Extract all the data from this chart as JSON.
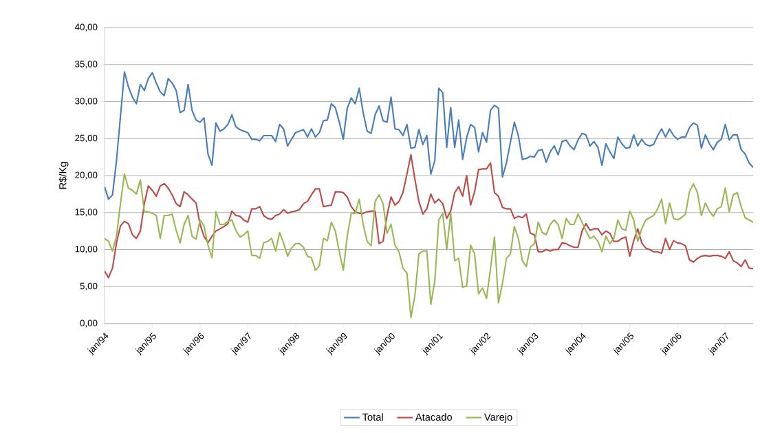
{
  "chart_data": {
    "type": "line",
    "ylabel": "R$/Kg",
    "categories": [
      "jan/94",
      null,
      null,
      null,
      null,
      null,
      null,
      null,
      null,
      null,
      null,
      null,
      "jan/95",
      null,
      null,
      null,
      null,
      null,
      null,
      null,
      null,
      null,
      null,
      null,
      "jan/96",
      null,
      null,
      null,
      null,
      null,
      null,
      null,
      null,
      null,
      null,
      null,
      "jan/97",
      null,
      null,
      null,
      null,
      null,
      null,
      null,
      null,
      null,
      null,
      null,
      "jan/98",
      null,
      null,
      null,
      null,
      null,
      null,
      null,
      null,
      null,
      null,
      null,
      "jan/99",
      null,
      null,
      null,
      null,
      null,
      null,
      null,
      null,
      null,
      null,
      null,
      "jan/00",
      null,
      null,
      null,
      null,
      null,
      null,
      null,
      null,
      null,
      null,
      null,
      "jan/01",
      null,
      null,
      null,
      null,
      null,
      null,
      null,
      null,
      null,
      null,
      null,
      "jan/02",
      null,
      null,
      null,
      null,
      null,
      null,
      null,
      null,
      null,
      null,
      null,
      "jan/03",
      null,
      null,
      null,
      null,
      null,
      null,
      null,
      null,
      null,
      null,
      null,
      "jan/04",
      null,
      null,
      null,
      null,
      null,
      null,
      null,
      null,
      null,
      null,
      null,
      "jan/05",
      null,
      null,
      null,
      null,
      null,
      null,
      null,
      null,
      null,
      null,
      null,
      "jan/06",
      null,
      null,
      null,
      null,
      null,
      null,
      null,
      null,
      null,
      null,
      null,
      "jan/07",
      null,
      null,
      null,
      null,
      null,
      null,
      null
    ],
    "series": [
      {
        "name": "Total",
        "color": "#4a7ebb",
        "values": [
          18.5,
          16.8,
          17.4,
          22,
          28,
          34,
          32,
          30.6,
          29.7,
          32.3,
          31.5,
          33.1,
          33.9,
          32.5,
          31.3,
          30.8,
          33.1,
          32.5,
          31.5,
          28.5,
          28.8,
          32.3,
          28.8,
          27.5,
          27.2,
          27.8,
          22.9,
          21.4,
          27.1,
          26.0,
          26.3,
          26.9,
          28.2,
          26.6,
          26.2,
          26.0,
          25.8,
          24.9,
          24.9,
          24.7,
          25.4,
          25.4,
          25.4,
          24.6,
          26.9,
          26.3,
          24.0,
          24.9,
          25.8,
          26.0,
          26.2,
          25.2,
          26.3,
          25.2,
          25.8,
          27.4,
          27.5,
          29.7,
          29.2,
          27.2,
          24.9,
          29.1,
          30.5,
          29.7,
          31.8,
          28.5,
          26.0,
          25.7,
          28.2,
          29.4,
          27.4,
          27.2,
          30.6,
          26.3,
          26.2,
          25.4,
          26.9,
          23.7,
          23.8,
          26.2,
          24.2,
          25.4,
          20.2,
          22.0,
          31.8,
          31.2,
          23.8,
          29.2,
          23.8,
          27.5,
          22.2,
          25.1,
          26.9,
          26.5,
          23.2,
          25.8,
          24.5,
          28.8,
          29.5,
          29.1,
          19.8,
          21.7,
          24.5,
          27.2,
          25.4,
          22.2,
          22.3,
          22.6,
          22.5,
          23.4,
          23.5,
          21.8,
          23.2,
          24.0,
          22.8,
          24.6,
          24.8,
          24.0,
          23.5,
          24.8,
          25.7,
          25.5,
          24.0,
          24.6,
          23.8,
          21.4,
          24.3,
          23.2,
          22.3,
          25.2,
          24.3,
          23.7,
          23.8,
          25.5,
          24.0,
          24.9,
          24.2,
          24.0,
          24.2,
          25.4,
          26.3,
          25.2,
          26.3,
          25.4,
          24.9,
          25.2,
          25.2,
          26.5,
          27.1,
          26.8,
          23.7,
          25.5,
          24.3,
          23.5,
          24.5,
          24.9,
          26.9,
          24.8,
          25.5,
          25.5,
          23.5,
          22.9,
          21.7,
          21.1
        ]
      },
      {
        "name": "Atacado",
        "color": "#be4b48",
        "values": [
          7.1,
          6.2,
          7.5,
          10.9,
          13.2,
          13.8,
          13.5,
          12.0,
          11.5,
          12.5,
          16.2,
          18.6,
          18.0,
          17.2,
          18.6,
          18.9,
          18.3,
          17.4,
          16.2,
          15.8,
          17.8,
          17.4,
          16.8,
          16.3,
          13.4,
          11.8,
          10.9,
          11.8,
          12.5,
          12.8,
          13.1,
          13.5,
          15.2,
          14.6,
          14.5,
          14.0,
          13.7,
          15.5,
          15.5,
          15.8,
          14.6,
          14.2,
          14.1,
          14.6,
          14.8,
          15.4,
          14.9,
          15.1,
          15.2,
          15.4,
          16.2,
          16.5,
          17.4,
          18.2,
          18.2,
          15.8,
          15.9,
          16.0,
          17.8,
          17.8,
          17.7,
          17.1,
          15.8,
          15.1,
          14.9,
          14.9,
          15.1,
          15.2,
          15.2,
          10.8,
          11.1,
          14.6,
          17.1,
          16.0,
          16.5,
          17.7,
          20.2,
          22.8,
          19.5,
          16.5,
          14.8,
          15.5,
          17.5,
          16.3,
          16.8,
          16.2,
          14.2,
          15.2,
          17.7,
          18.5,
          17.2,
          20.0,
          16.0,
          17.8,
          20.8,
          20.9,
          20.9,
          21.7,
          17.7,
          17.2,
          15.7,
          15.5,
          15.5,
          14.2,
          14.5,
          14.3,
          14.8,
          12.2,
          12.0,
          9.7,
          9.7,
          10.0,
          9.8,
          10.0,
          10.0,
          10.9,
          10.8,
          10.5,
          10.3,
          10.3,
          12.5,
          13.5,
          12.6,
          12.8,
          12.8,
          12.0,
          12.5,
          12.2,
          11.1,
          11.1,
          11.5,
          11.7,
          9.1,
          11.2,
          12.8,
          10.9,
          10.2,
          10.0,
          9.7,
          9.7,
          9.5,
          11.5,
          10.0,
          11.2,
          10.9,
          10.8,
          10.5,
          8.6,
          8.3,
          8.8,
          9.1,
          9.2,
          9.1,
          9.2,
          9.2,
          9.1,
          8.8,
          9.7,
          8.5,
          8.2,
          7.7,
          8.6,
          7.5,
          7.4
        ]
      },
      {
        "name": "Varejo",
        "color": "#98b954",
        "values": [
          11.5,
          11.1,
          9.8,
          11.8,
          16.2,
          20.2,
          18.3,
          18.0,
          17.5,
          19.4,
          15.1,
          15.1,
          14.9,
          14.6,
          11.5,
          14.6,
          14.6,
          14.8,
          12.6,
          10.9,
          13.4,
          14.6,
          11.8,
          11.4,
          14.0,
          13.2,
          10.6,
          8.9,
          15.1,
          13.4,
          13.4,
          13.8,
          14.0,
          12.6,
          11.7,
          12.0,
          12.5,
          9.2,
          9.2,
          8.8,
          10.9,
          11.1,
          11.5,
          9.8,
          12.3,
          10.9,
          9.1,
          10.2,
          10.8,
          10.8,
          10.3,
          9.1,
          8.9,
          7.2,
          7.8,
          11.5,
          11.2,
          13.7,
          12.5,
          9.7,
          7.2,
          11.8,
          14.9,
          14.9,
          16.8,
          13.4,
          11.1,
          10.5,
          16.5,
          17.4,
          16.2,
          12.2,
          13.4,
          10.6,
          9.7,
          7.5,
          6.8,
          0.8,
          3.8,
          9.4,
          9.8,
          9.8,
          2.6,
          5.7,
          14.0,
          14.9,
          10.0,
          14.9,
          8.5,
          8.8,
          4.9,
          5.1,
          10.6,
          9.4,
          4.0,
          4.8,
          3.4,
          7.4,
          11.7,
          2.8,
          5.4,
          8.8,
          9.4,
          13.1,
          11.5,
          8.5,
          7.7,
          10.3,
          10.8,
          13.7,
          12.3,
          12.0,
          13.4,
          14.0,
          13.4,
          11.5,
          14.2,
          13.4,
          13.4,
          14.8,
          13.7,
          12.5,
          11.5,
          11.8,
          11.1,
          9.7,
          11.8,
          10.8,
          11.5,
          14.0,
          12.8,
          12.6,
          15.2,
          14.0,
          11.1,
          12.8,
          14.0,
          14.3,
          14.6,
          15.5,
          16.8,
          13.5,
          16.3,
          14.2,
          14.0,
          14.3,
          14.8,
          17.8,
          18.9,
          17.7,
          14.6,
          16.3,
          15.2,
          14.5,
          15.5,
          15.8,
          18.3,
          15.1,
          17.4,
          17.7,
          15.8,
          14.3,
          14.0,
          13.7
        ]
      }
    ],
    "ylim": [
      0,
      40
    ],
    "yticks": [
      {
        "value": 0,
        "label": "0,00"
      },
      {
        "value": 5,
        "label": "5,00"
      },
      {
        "value": 10,
        "label": "10,00"
      },
      {
        "value": 15,
        "label": "15,00"
      },
      {
        "value": 20,
        "label": "20,00"
      },
      {
        "value": 25,
        "label": "25,00"
      },
      {
        "value": 30,
        "label": "30,00"
      },
      {
        "value": 35,
        "label": "35,00"
      },
      {
        "value": 40,
        "label": "40,00"
      }
    ],
    "grid": "y",
    "legend": "bottom",
    "marker": "none",
    "line_style": "solid"
  }
}
